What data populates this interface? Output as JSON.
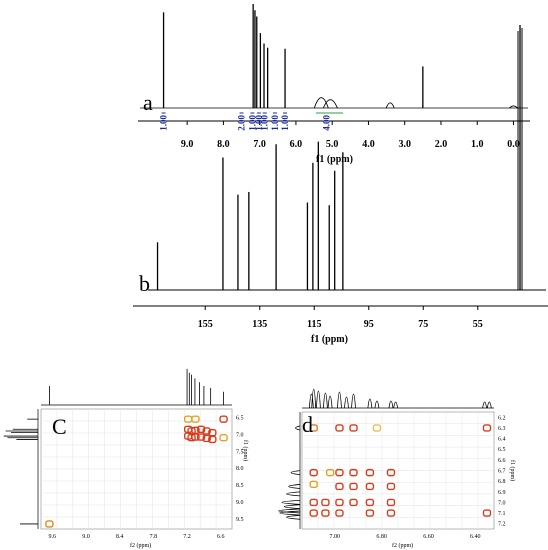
{
  "chart_data": [
    {
      "type": "line",
      "panel_label": "a",
      "xlabel": "f1 (ppm)",
      "x_reversed": true,
      "xlim": [
        10.3,
        -0.4
      ],
      "x_ticks": [
        "9.0",
        "8.0",
        "7.0",
        "6.0",
        "5.0",
        "4.0",
        "3.0",
        "2.0",
        "1.0",
        "0.0"
      ],
      "peaks": [
        {
          "ppm": 9.65,
          "rel_height": 0.92
        },
        {
          "ppm": 7.18,
          "rel_height": 1.0
        },
        {
          "ppm": 7.13,
          "rel_height": 0.94
        },
        {
          "ppm": 7.08,
          "rel_height": 0.88
        },
        {
          "ppm": 6.98,
          "rel_height": 0.72
        },
        {
          "ppm": 6.88,
          "rel_height": 0.62
        },
        {
          "ppm": 6.78,
          "rel_height": 0.58
        },
        {
          "ppm": 6.3,
          "rel_height": 0.57
        },
        {
          "ppm": 5.3,
          "rel_height": 0.18
        },
        {
          "ppm": 5.05,
          "rel_height": 0.14
        },
        {
          "ppm": 3.4,
          "rel_height": 0.08
        },
        {
          "ppm": 2.5,
          "rel_height": 0.4
        },
        {
          "ppm": 0.0,
          "rel_height": 0.02
        }
      ],
      "integrals": [
        {
          "ppm": 9.65,
          "label": "1.00"
        },
        {
          "ppm": 7.5,
          "label": "2.00"
        },
        {
          "ppm": 7.2,
          "label": "1.00"
        },
        {
          "ppm": 7.02,
          "label": "1.00"
        },
        {
          "ppm": 6.86,
          "label": "1.00"
        },
        {
          "ppm": 6.58,
          "label": "1.00"
        },
        {
          "ppm": 6.3,
          "label": "1.00"
        },
        {
          "ppm": 5.15,
          "label": "4.00"
        }
      ]
    },
    {
      "type": "line",
      "panel_label": "b",
      "xlabel": "f1 (ppm)",
      "x_reversed": true,
      "xlim": [
        176,
        34
      ],
      "x_ticks": [
        "155",
        "135",
        "115",
        "95",
        "75",
        "55"
      ],
      "peaks": [
        {
          "ppm": 172.5,
          "rel_height": 0.18
        },
        {
          "ppm": 148.5,
          "rel_height": 0.5
        },
        {
          "ppm": 143.0,
          "rel_height": 0.36
        },
        {
          "ppm": 139.0,
          "rel_height": 0.37
        },
        {
          "ppm": 129.0,
          "rel_height": 0.55
        },
        {
          "ppm": 117.5,
          "rel_height": 0.33
        },
        {
          "ppm": 115.5,
          "rel_height": 0.48
        },
        {
          "ppm": 113.5,
          "rel_height": 0.56
        },
        {
          "ppm": 109.5,
          "rel_height": 0.32
        },
        {
          "ppm": 107.5,
          "rel_height": 0.45
        },
        {
          "ppm": 104.5,
          "rel_height": 0.52
        },
        {
          "ppm": 39.5,
          "rel_height": 1.0
        }
      ]
    },
    {
      "type": "heatmap",
      "panel_label": "C",
      "xlabel": "f2 (ppm)",
      "ylabel": "f1 (ppm)",
      "x_reversed": true,
      "xlim": [
        9.8,
        6.4
      ],
      "ylim": [
        6.25,
        9.8
      ],
      "x_ticks": [
        "9.6",
        "9.0",
        "8.4",
        "7.8",
        "7.2",
        "6.6"
      ],
      "y_ticks": [
        "6.5",
        "7.0",
        "7.5",
        "8.0",
        "8.5",
        "9.0",
        "9.5"
      ],
      "cross_peaks": [
        {
          "f2": 9.65,
          "f1": 9.65,
          "color": "#e08a1a"
        },
        {
          "f2": 7.18,
          "f1": 6.55,
          "color": "#e8a020"
        },
        {
          "f2": 7.05,
          "f1": 6.55,
          "color": "#e8a020"
        },
        {
          "f2": 6.55,
          "f1": 6.55,
          "color": "#d93a1a"
        },
        {
          "f2": 7.18,
          "f1": 6.85,
          "color": "#d93a1a"
        },
        {
          "f2": 7.12,
          "f1": 6.9,
          "color": "#d93a1a"
        },
        {
          "f2": 7.05,
          "f1": 6.88,
          "color": "#d93a1a"
        },
        {
          "f2": 6.95,
          "f1": 6.85,
          "color": "#d93a1a"
        },
        {
          "f2": 6.85,
          "f1": 6.9,
          "color": "#d93a1a"
        },
        {
          "f2": 6.75,
          "f1": 6.95,
          "color": "#d93a1a"
        },
        {
          "f2": 7.18,
          "f1": 7.05,
          "color": "#d93a1a"
        },
        {
          "f2": 7.12,
          "f1": 7.1,
          "color": "#d93a1a"
        },
        {
          "f2": 7.05,
          "f1": 7.08,
          "color": "#d93a1a"
        },
        {
          "f2": 6.95,
          "f1": 7.08,
          "color": "#d93a1a"
        },
        {
          "f2": 6.85,
          "f1": 7.12,
          "color": "#d93a1a"
        },
        {
          "f2": 6.75,
          "f1": 7.15,
          "color": "#d93a1a"
        },
        {
          "f2": 6.55,
          "f1": 7.1,
          "color": "#e8a020"
        }
      ]
    },
    {
      "type": "heatmap",
      "panel_label": "d",
      "xlabel": "f2 (ppm)",
      "ylabel": "f1 (ppm)",
      "x_reversed": true,
      "xlim": [
        7.14,
        6.32
      ],
      "ylim": [
        6.15,
        7.25
      ],
      "x_ticks": [
        "7.00",
        "6.80",
        "6.60",
        "6.40"
      ],
      "y_ticks": [
        "6.2",
        "6.3",
        "6.4",
        "6.5",
        "6.6",
        "6.7",
        "6.8",
        "6.9",
        "7.0",
        "7.1",
        "7.2"
      ],
      "cross_peaks": [
        {
          "f2": 7.09,
          "f1": 6.3,
          "color": "#e07a1a"
        },
        {
          "f2": 6.98,
          "f1": 6.3,
          "color": "#d93a1a"
        },
        {
          "f2": 6.92,
          "f1": 6.3,
          "color": "#d93a1a"
        },
        {
          "f2": 6.82,
          "f1": 6.3,
          "color": "#e8c050"
        },
        {
          "f2": 6.35,
          "f1": 6.3,
          "color": "#d93a1a"
        },
        {
          "f2": 7.09,
          "f1": 6.72,
          "color": "#d93a1a"
        },
        {
          "f2": 7.02,
          "f1": 6.72,
          "color": "#e8a020"
        },
        {
          "f2": 6.98,
          "f1": 6.72,
          "color": "#d93a1a"
        },
        {
          "f2": 6.92,
          "f1": 6.72,
          "color": "#d93a1a"
        },
        {
          "f2": 6.85,
          "f1": 6.72,
          "color": "#d93a1a"
        },
        {
          "f2": 6.76,
          "f1": 6.72,
          "color": "#d93a1a"
        },
        {
          "f2": 7.09,
          "f1": 6.83,
          "color": "#e8a020"
        },
        {
          "f2": 6.98,
          "f1": 6.85,
          "color": "#d93a1a"
        },
        {
          "f2": 6.92,
          "f1": 6.85,
          "color": "#d93a1a"
        },
        {
          "f2": 6.85,
          "f1": 6.85,
          "color": "#d93a1a"
        },
        {
          "f2": 6.76,
          "f1": 6.85,
          "color": "#d93a1a"
        },
        {
          "f2": 7.09,
          "f1": 7.0,
          "color": "#d93a1a"
        },
        {
          "f2": 7.04,
          "f1": 7.0,
          "color": "#d93a1a"
        },
        {
          "f2": 6.98,
          "f1": 7.0,
          "color": "#d93a1a"
        },
        {
          "f2": 6.92,
          "f1": 7.0,
          "color": "#d93a1a"
        },
        {
          "f2": 6.85,
          "f1": 7.0,
          "color": "#d93a1a"
        },
        {
          "f2": 6.76,
          "f1": 7.0,
          "color": "#d93a1a"
        },
        {
          "f2": 7.09,
          "f1": 7.1,
          "color": "#d93a1a"
        },
        {
          "f2": 7.04,
          "f1": 7.1,
          "color": "#d93a1a"
        },
        {
          "f2": 6.98,
          "f1": 7.1,
          "color": "#d93a1a"
        },
        {
          "f2": 6.85,
          "f1": 7.1,
          "color": "#d93a1a"
        },
        {
          "f2": 6.76,
          "f1": 7.1,
          "color": "#d93a1a"
        },
        {
          "f2": 6.35,
          "f1": 7.1,
          "color": "#d93a1a"
        }
      ]
    }
  ]
}
